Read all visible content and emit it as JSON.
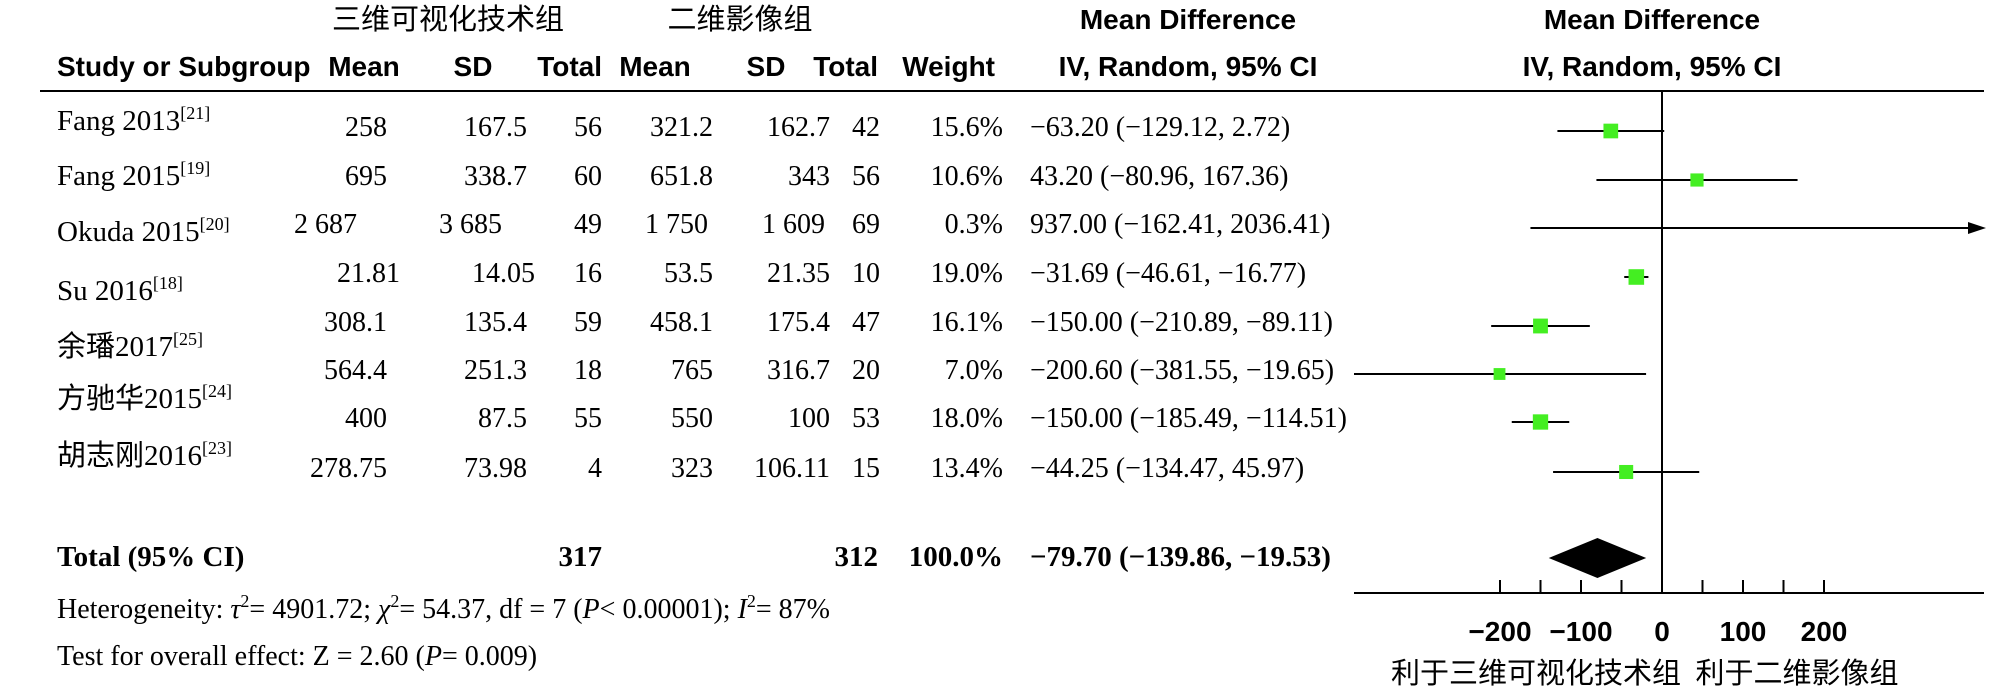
{
  "headers": {
    "group1": "三维可视化技术组",
    "group2": "二维影像组",
    "md_title": "Mean Difference",
    "md_subtitle": "IV, Random, 95% CI",
    "plot_title": "Mean Difference",
    "plot_subtitle": "IV, Random, 95% CI",
    "study": "Study or Subgroup",
    "mean1": "Mean",
    "sd1": "SD",
    "total1": "Total",
    "mean2": "Mean",
    "sd2": "SD",
    "total2": "Total",
    "weight": "Weight"
  },
  "total_row": {
    "label": "Total (95% CI)",
    "total1": "317",
    "total2": "312",
    "weight": "100.0%",
    "ci_text": "−79.70 (−139.86, −19.53)"
  },
  "footer": {
    "heterogeneity": "Heterogeneity: τ²= 4901.72; χ²= 54.37, df = 7 (P< 0.00001); I²= 87%",
    "overall": "Test for overall effect: Z = 2.60 (P= 0.009)",
    "favours_left": "利于三维可视化技术组",
    "favours_right": "利于二维影像组"
  },
  "chart_data": {
    "type": "forest",
    "xlim": [
      -200,
      200
    ],
    "axis_ticks": [
      -200,
      -100,
      0,
      100,
      200
    ],
    "marker_color": "#44ee22",
    "studies": [
      {
        "name": "Fang 2013",
        "ref": "[21]",
        "mean1": "258",
        "sd1": "167.5",
        "total1": "56",
        "mean2": "321.2",
        "sd2": "162.7",
        "total2": "42",
        "weight": "15.6%",
        "weight_value": 15.6,
        "ci_text": "−63.20 (−129.12, 2.72)",
        "md": -63.2,
        "lo": -129.12,
        "hi": 2.72
      },
      {
        "name": "Fang 2015",
        "ref": "[19]",
        "mean1": "695",
        "sd1": "338.7",
        "total1": "60",
        "mean2": "651.8",
        "sd2": "343",
        "total2": "56",
        "weight": "10.6%",
        "weight_value": 10.6,
        "ci_text": "43.20 (−80.96, 167.36)",
        "md": 43.2,
        "lo": -80.96,
        "hi": 167.36
      },
      {
        "name": "Okuda 2015",
        "ref": "[20]",
        "mean1": "2 687",
        "sd1": "3 685",
        "total1": "49",
        "mean2": "1 750",
        "sd2": "1 609",
        "total2": "69",
        "weight": "0.3%",
        "weight_value": 0.3,
        "ci_text": "937.00 (−162.41, 2036.41)",
        "md": 937.0,
        "lo": -162.41,
        "hi": 2036.41
      },
      {
        "name": "Su 2016",
        "ref": "[18]",
        "mean1": "21.81",
        "sd1": "14.05",
        "total1": "16",
        "mean2": "53.5",
        "sd2": "21.35",
        "total2": "10",
        "weight": "19.0%",
        "weight_value": 19.0,
        "ci_text": "−31.69 (−46.61, −16.77)",
        "md": -31.69,
        "lo": -46.61,
        "hi": -16.77
      },
      {
        "name": "",
        "ref": "",
        "mean1": "308.1",
        "sd1": "135.4",
        "total1": "59",
        "mean2": "458.1",
        "sd2": "175.4",
        "total2": "47",
        "weight": "16.1%",
        "weight_value": 16.1,
        "ci_text": "−150.00 (−210.89, −89.11)",
        "md": -150.0,
        "lo": -210.89,
        "hi": -89.11
      },
      {
        "name": "余璠2017",
        "ref": "[25]",
        "mean1": "564.4",
        "sd1": "251.3",
        "total1": "18",
        "mean2": "765",
        "sd2": "316.7",
        "total2": "20",
        "weight": "7.0%",
        "weight_value": 7.0,
        "ci_text": "−200.60 (−381.55, −19.65)",
        "md": -200.6,
        "lo": -381.55,
        "hi": -19.65
      },
      {
        "name": "方驰华2015",
        "ref": "[24]",
        "mean1": "400",
        "sd1": "87.5",
        "total1": "55",
        "mean2": "550",
        "sd2": "100",
        "total2": "53",
        "weight": "18.0%",
        "weight_value": 18.0,
        "ci_text": "−150.00 (−185.49, −114.51)",
        "md": -150.0,
        "lo": -185.49,
        "hi": -114.51
      },
      {
        "name": "胡志刚2016",
        "ref": "[23]",
        "mean1": "278.75",
        "sd1": "73.98",
        "total1": "4",
        "mean2": "323",
        "sd2": "106.11",
        "total2": "15",
        "weight": "13.4%",
        "weight_value": 13.4,
        "ci_text": "−44.25 (−134.47, 45.97)",
        "md": -44.25,
        "lo": -134.47,
        "hi": 45.97
      }
    ],
    "pooled": {
      "md": -79.7,
      "lo": -139.86,
      "hi": -19.53
    }
  }
}
